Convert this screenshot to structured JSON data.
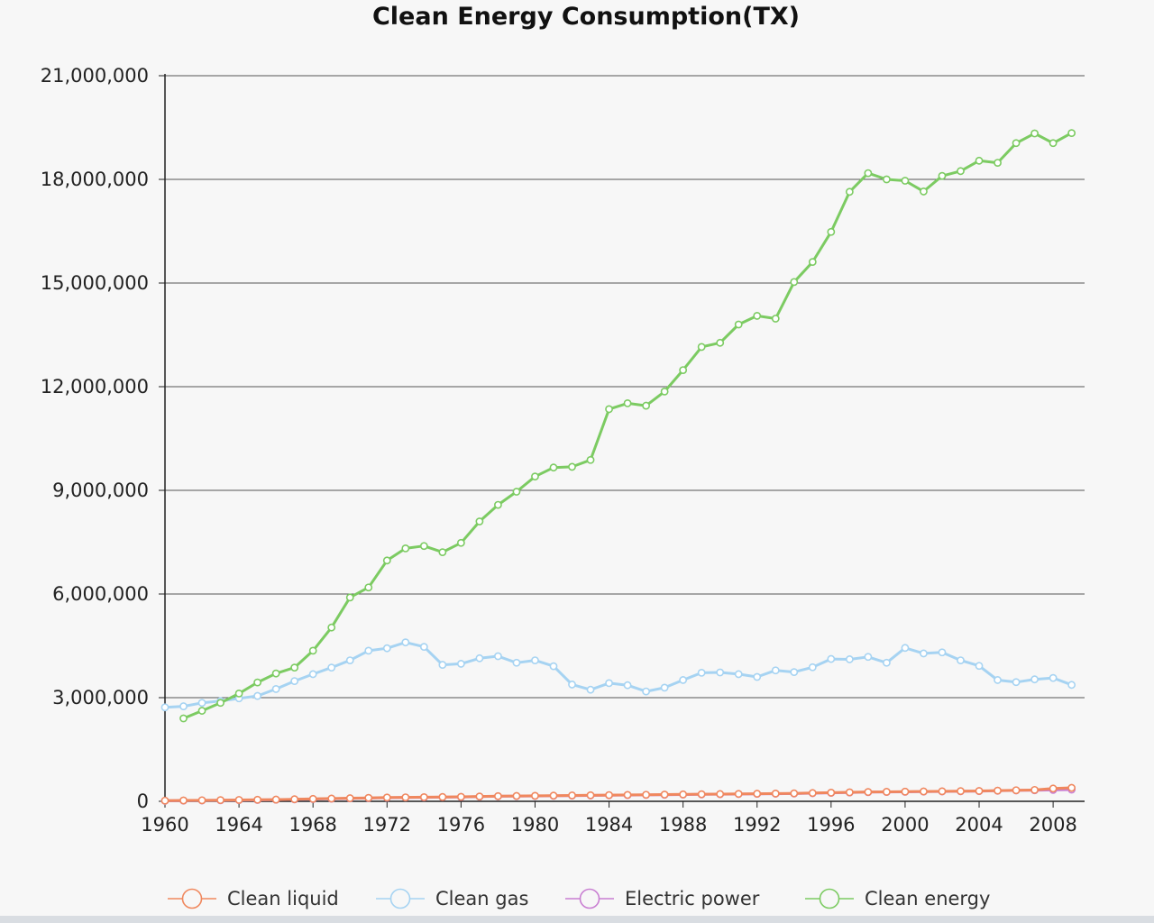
{
  "chart_data": {
    "type": "line",
    "title": "Clean Energy Consumption(TX)",
    "xlabel": "",
    "ylabel": "",
    "xlim": [
      1960,
      2009.7
    ],
    "ylim": [
      0,
      21000000
    ],
    "y_ticks": [
      0,
      3000000,
      6000000,
      9000000,
      12000000,
      15000000,
      18000000,
      21000000
    ],
    "y_tick_labels": [
      "0",
      "3,000,000",
      "6,000,000",
      "9,000,000",
      "12,000,000",
      "15,000,000",
      "18,000,000",
      "21,000,000"
    ],
    "x_ticks": [
      1960,
      1964,
      1968,
      1972,
      1976,
      1980,
      1984,
      1988,
      1992,
      1996,
      2000,
      2004,
      2008
    ],
    "x_tick_labels": [
      "1960",
      "1964",
      "1968",
      "1972",
      "1976",
      "1980",
      "1984",
      "1988",
      "1992",
      "1996",
      "2000",
      "2004",
      "2008"
    ],
    "grid": "horizontal",
    "legend_position": "bottom",
    "series": [
      {
        "name": "Clean liquid",
        "color": "#f0885e",
        "x": [
          1960,
          1961,
          1962,
          1963,
          1964,
          1965,
          1966,
          1967,
          1968,
          1969,
          1970,
          1971,
          1972,
          1973,
          1974,
          1975,
          1976,
          1977,
          1978,
          1979,
          1980,
          1981,
          1982,
          1983,
          1984,
          1985,
          1986,
          1987,
          1988,
          1989,
          1990,
          1991,
          1992,
          1993,
          1994,
          1995,
          1996,
          1997,
          1998,
          1999,
          2000,
          2001,
          2002,
          2003,
          2004,
          2005,
          2006,
          2007,
          2008,
          2009
        ],
        "values": [
          20000,
          25000,
          30000,
          35000,
          40000,
          45000,
          50000,
          60000,
          70000,
          80000,
          90000,
          100000,
          110000,
          115000,
          120000,
          125000,
          130000,
          140000,
          150000,
          155000,
          160000,
          165000,
          170000,
          175000,
          180000,
          185000,
          190000,
          195000,
          200000,
          205000,
          210000,
          215000,
          220000,
          225000,
          230000,
          240000,
          250000,
          260000,
          270000,
          275000,
          280000,
          285000,
          290000,
          295000,
          300000,
          310000,
          320000,
          330000,
          370000,
          390000
        ]
      },
      {
        "name": "Clean gas",
        "color": "#a6d3f2",
        "x": [
          1960,
          1961,
          1962,
          1963,
          1964,
          1965,
          1966,
          1967,
          1968,
          1969,
          1970,
          1971,
          1972,
          1973,
          1974,
          1975,
          1976,
          1977,
          1978,
          1979,
          1980,
          1981,
          1982,
          1983,
          1984,
          1985,
          1986,
          1987,
          1988,
          1989,
          1990,
          1991,
          1992,
          1993,
          1994,
          1995,
          1996,
          1997,
          1998,
          1999,
          2000,
          2001,
          2002,
          2003,
          2004,
          2005,
          2006,
          2007,
          2008,
          2009
        ],
        "values": [
          2720000,
          2750000,
          2850000,
          2900000,
          2980000,
          3050000,
          3250000,
          3480000,
          3680000,
          3870000,
          4080000,
          4360000,
          4430000,
          4600000,
          4470000,
          3950000,
          3980000,
          4140000,
          4200000,
          4010000,
          4080000,
          3910000,
          3380000,
          3230000,
          3420000,
          3360000,
          3180000,
          3290000,
          3510000,
          3720000,
          3730000,
          3680000,
          3600000,
          3790000,
          3740000,
          3880000,
          4120000,
          4110000,
          4180000,
          4010000,
          4440000,
          4280000,
          4310000,
          4080000,
          3920000,
          3510000,
          3450000,
          3530000,
          3570000,
          3370000
        ]
      },
      {
        "name": "Electric power",
        "color": "#c97fd2",
        "x": [
          1960,
          1961,
          1962,
          1963,
          1964,
          1965,
          1966,
          1967,
          1968,
          1969,
          1970,
          1971,
          1972,
          1973,
          1974,
          1975,
          1976,
          1977,
          1978,
          1979,
          1980,
          1981,
          1982,
          1983,
          1984,
          1985,
          1986,
          1987,
          1988,
          1989,
          1990,
          1991,
          1992,
          1993,
          1994,
          1995,
          1996,
          1997,
          1998,
          1999,
          2000,
          2001,
          2002,
          2003,
          2004,
          2005,
          2006,
          2007,
          2008,
          2009
        ],
        "values": [
          15000,
          20000,
          25000,
          30000,
          35000,
          40000,
          45000,
          55000,
          65000,
          75000,
          85000,
          95000,
          105000,
          110000,
          115000,
          120000,
          125000,
          135000,
          145000,
          150000,
          155000,
          160000,
          165000,
          170000,
          175000,
          180000,
          185000,
          190000,
          195000,
          200000,
          205000,
          210000,
          215000,
          220000,
          225000,
          235000,
          245000,
          255000,
          265000,
          270000,
          275000,
          280000,
          285000,
          290000,
          295000,
          305000,
          315000,
          320000,
          330000,
          340000
        ]
      },
      {
        "name": "Clean energy",
        "color": "#7ccb62",
        "x": [
          1961,
          1962,
          1963,
          1964,
          1965,
          1966,
          1967,
          1968,
          1969,
          1970,
          1971,
          1972,
          1973,
          1974,
          1975,
          1976,
          1977,
          1978,
          1979,
          1980,
          1981,
          1982,
          1983,
          1984,
          1985,
          1986,
          1987,
          1988,
          1989,
          1990,
          1991,
          1992,
          1993,
          1994,
          1995,
          1996,
          1997,
          1998,
          1999,
          2000,
          2001,
          2002,
          2003,
          2004,
          2005,
          2006,
          2007,
          2008,
          2009
        ],
        "values": [
          2400000,
          2620000,
          2850000,
          3120000,
          3440000,
          3700000,
          3870000,
          4360000,
          5030000,
          5900000,
          6190000,
          6970000,
          7320000,
          7390000,
          7210000,
          7480000,
          8100000,
          8580000,
          8960000,
          9400000,
          9660000,
          9680000,
          9880000,
          11350000,
          11520000,
          11450000,
          11860000,
          12480000,
          13150000,
          13270000,
          13800000,
          14050000,
          13970000,
          15030000,
          15610000,
          16480000,
          17640000,
          18180000,
          18000000,
          17960000,
          17650000,
          18100000,
          18240000,
          18540000,
          18480000,
          19050000,
          19330000,
          19050000,
          19340000
        ]
      }
    ]
  }
}
